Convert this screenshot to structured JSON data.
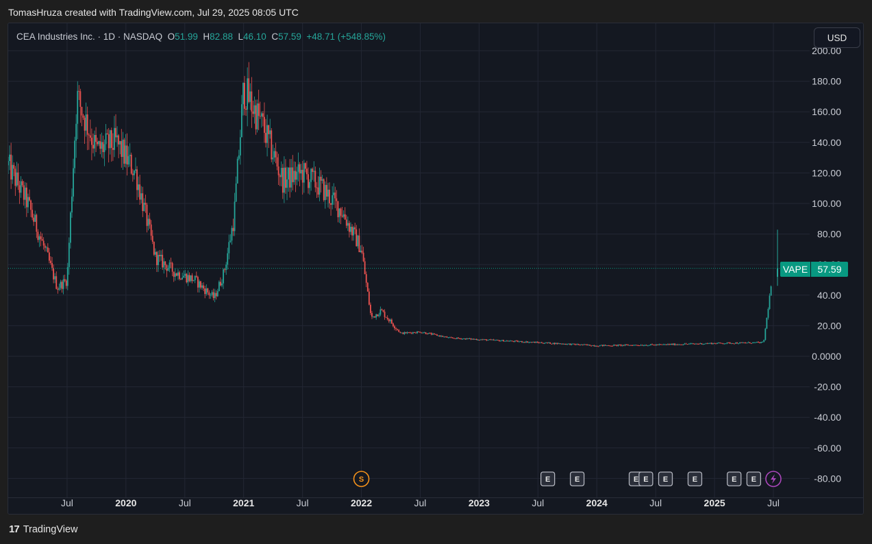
{
  "header": {
    "caption": "TomasHruza created with TradingView.com, Jul 29, 2025 08:05 UTC"
  },
  "legend": {
    "name": "CEA Industries Inc. · 1D · NASDAQ",
    "o_label": "O",
    "o_value": "51.99",
    "h_label": "H",
    "h_value": "82.88",
    "l_label": "L",
    "l_value": "46.10",
    "c_label": "C",
    "c_value": "57.59",
    "change": "+48.71 (+548.85%)"
  },
  "currency_button": "USD",
  "price_tag": {
    "symbol": "VAPE",
    "price": "57.59"
  },
  "footer": {
    "brand": "TradingView"
  },
  "colors": {
    "up": "#26a69a",
    "down": "#ef5350",
    "background": "#141821",
    "grid": "#232734",
    "last_price": "#089981"
  },
  "chart_data": {
    "type": "candlestick",
    "title": "CEA Industries Inc. · 1D · NASDAQ",
    "ylim": [
      -90,
      210
    ],
    "y_ticks": [
      200,
      180,
      160,
      140,
      120,
      100,
      80,
      60,
      40,
      20,
      0,
      -20,
      -40,
      -60,
      -80
    ],
    "y_tick_labels": [
      "200.00",
      "180.00",
      "160.00",
      "140.00",
      "120.00",
      "100.00",
      "80.00",
      "60.00",
      "40.00",
      "20.00",
      "0.0000",
      "-20.00",
      "-40.00",
      "-60.00",
      "-80.00"
    ],
    "x_ticks": [
      {
        "label": "Jul",
        "date": "2019-07",
        "bold": false
      },
      {
        "label": "2020",
        "date": "2020-01",
        "bold": true
      },
      {
        "label": "Jul",
        "date": "2020-07",
        "bold": false
      },
      {
        "label": "2021",
        "date": "2021-01",
        "bold": true
      },
      {
        "label": "Jul",
        "date": "2021-07",
        "bold": false
      },
      {
        "label": "2022",
        "date": "2022-01",
        "bold": true
      },
      {
        "label": "Jul",
        "date": "2022-07",
        "bold": false
      },
      {
        "label": "2023",
        "date": "2023-01",
        "bold": true
      },
      {
        "label": "Jul",
        "date": "2023-07",
        "bold": false
      },
      {
        "label": "2024",
        "date": "2024-01",
        "bold": true
      },
      {
        "label": "Jul",
        "date": "2024-07",
        "bold": false
      },
      {
        "label": "2025",
        "date": "2025-01",
        "bold": true
      },
      {
        "label": "Jul",
        "date": "2025-07",
        "bold": false
      }
    ],
    "last_price": 57.59,
    "approx_close_series": [
      {
        "date": "2019-01",
        "close": 125
      },
      {
        "date": "2019-03",
        "close": 100
      },
      {
        "date": "2019-05",
        "close": 65
      },
      {
        "date": "2019-06",
        "close": 45
      },
      {
        "date": "2019-07",
        "close": 50
      },
      {
        "date": "2019-08",
        "close": 170
      },
      {
        "date": "2019-10",
        "close": 135
      },
      {
        "date": "2019-12",
        "close": 140
      },
      {
        "date": "2020-02",
        "close": 120
      },
      {
        "date": "2020-04",
        "close": 65
      },
      {
        "date": "2020-06",
        "close": 55
      },
      {
        "date": "2020-08",
        "close": 50
      },
      {
        "date": "2020-10",
        "close": 38
      },
      {
        "date": "2020-11",
        "close": 55
      },
      {
        "date": "2020-12",
        "close": 90
      },
      {
        "date": "2021-01",
        "close": 175
      },
      {
        "date": "2021-03",
        "close": 150
      },
      {
        "date": "2021-05",
        "close": 115
      },
      {
        "date": "2021-07",
        "close": 120
      },
      {
        "date": "2021-09",
        "close": 110
      },
      {
        "date": "2021-11",
        "close": 95
      },
      {
        "date": "2022-01",
        "close": 70
      },
      {
        "date": "2022-02",
        "close": 25
      },
      {
        "date": "2022-03",
        "close": 30
      },
      {
        "date": "2022-05",
        "close": 15
      },
      {
        "date": "2022-07",
        "close": 16
      },
      {
        "date": "2022-10",
        "close": 12
      },
      {
        "date": "2023-01",
        "close": 11
      },
      {
        "date": "2023-07",
        "close": 9
      },
      {
        "date": "2024-01",
        "close": 7
      },
      {
        "date": "2024-07",
        "close": 7.5
      },
      {
        "date": "2025-01",
        "close": 8.5
      },
      {
        "date": "2025-06",
        "close": 9
      },
      {
        "date": "2025-07",
        "close": 57.59
      }
    ],
    "events": [
      {
        "type": "S",
        "date": "2022-01"
      },
      {
        "type": "E",
        "date": "2023-08"
      },
      {
        "type": "E",
        "date": "2023-11"
      },
      {
        "type": "E",
        "date": "2024-05"
      },
      {
        "type": "E",
        "date": "2024-06"
      },
      {
        "type": "E",
        "date": "2024-08"
      },
      {
        "type": "E",
        "date": "2024-11"
      },
      {
        "type": "E",
        "date": "2025-03"
      },
      {
        "type": "E",
        "date": "2025-05"
      },
      {
        "type": "bolt",
        "date": "2025-07"
      }
    ]
  }
}
